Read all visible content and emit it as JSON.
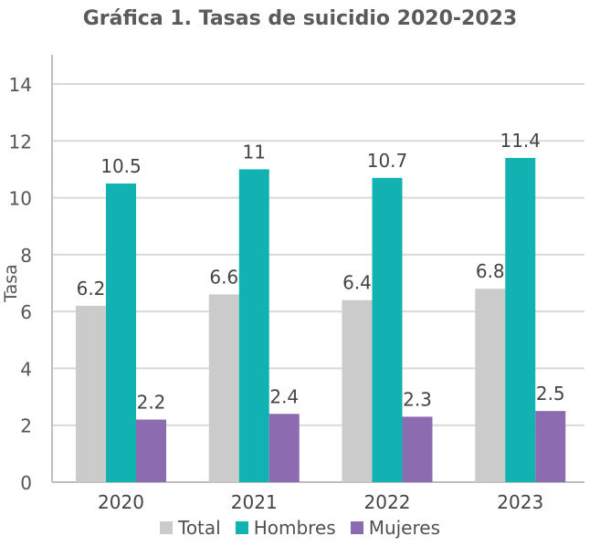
{
  "chart_data": {
    "type": "bar",
    "title": "Gráfica 1. Tasas de suicidio 2020‑2023",
    "xlabel": "",
    "ylabel": "Tasa",
    "categories": [
      "2020",
      "2021",
      "2022",
      "2023"
    ],
    "ylim": [
      0,
      14
    ],
    "yticks": [
      0,
      2,
      4,
      6,
      8,
      10,
      12,
      14
    ],
    "grid": true,
    "legend_position": "bottom",
    "series": [
      {
        "name": "Total",
        "color": "#cbcbcb",
        "values": [
          6.2,
          6.6,
          6.4,
          6.8
        ],
        "labels": [
          "6.2",
          "6.6",
          "6.4",
          "6.8"
        ]
      },
      {
        "name": "Hombres",
        "color": "#13b2b2",
        "values": [
          10.5,
          11,
          10.7,
          11.4
        ],
        "labels": [
          "10.5",
          "11",
          "10.7",
          "11.4"
        ]
      },
      {
        "name": "Mujeres",
        "color": "#8c6bb1",
        "values": [
          2.2,
          2.4,
          2.3,
          2.5
        ],
        "labels": [
          "2.2",
          "2.4",
          "2.3",
          "2.5"
        ]
      }
    ]
  }
}
